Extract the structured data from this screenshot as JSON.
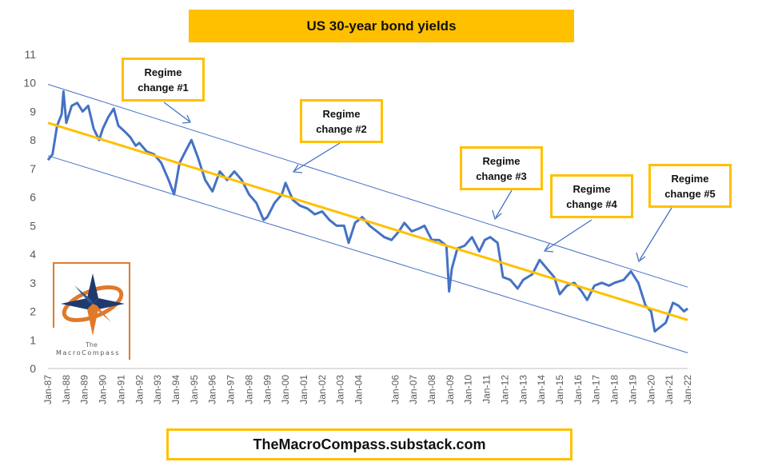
{
  "title": "US 30-year bond yields",
  "footer": "TheMacroCompass.substack.com",
  "logo": {
    "top_text": "The",
    "bottom_text": "MacroCompass"
  },
  "annotations": [
    {
      "line1": "Regime",
      "line2": "change #1"
    },
    {
      "line1": "Regime",
      "line2": "change #2"
    },
    {
      "line1": "Regime",
      "line2": "change #3"
    },
    {
      "line1": "Regime",
      "line2": "change #4"
    },
    {
      "line1": "Regime",
      "line2": "change #5"
    }
  ],
  "colors": {
    "series": "#4472c4",
    "trend": "#ffc000",
    "channel": "#4472c4",
    "accent": "#ffc000",
    "logo_orange": "#e07a2a",
    "logo_navy": "#1f3a6e"
  },
  "chart_data": {
    "type": "line",
    "title": "US 30-year bond yields",
    "xlabel": "",
    "ylabel": "",
    "xlim": [
      1987.0,
      2022.0
    ],
    "ylim": [
      0,
      11
    ],
    "y_ticks": [
      0,
      1,
      2,
      3,
      4,
      5,
      6,
      7,
      8,
      9,
      10,
      11
    ],
    "x_ticks": [
      {
        "label": "Jan-87",
        "x": 1987
      },
      {
        "label": "Jan-88",
        "x": 1988
      },
      {
        "label": "Jan-89",
        "x": 1989
      },
      {
        "label": "Jan-90",
        "x": 1990
      },
      {
        "label": "Jan-91",
        "x": 1991
      },
      {
        "label": "Jan-92",
        "x": 1992
      },
      {
        "label": "Jan-93",
        "x": 1993
      },
      {
        "label": "Jan-94",
        "x": 1994
      },
      {
        "label": "Jan-95",
        "x": 1995
      },
      {
        "label": "Jan-96",
        "x": 1996
      },
      {
        "label": "Jan-97",
        "x": 1997
      },
      {
        "label": "Jan-98",
        "x": 1998
      },
      {
        "label": "Jan-99",
        "x": 1999
      },
      {
        "label": "Jan-00",
        "x": 2000
      },
      {
        "label": "Jan-01",
        "x": 2001
      },
      {
        "label": "Jan-02",
        "x": 2002
      },
      {
        "label": "Jan-03",
        "x": 2003
      },
      {
        "label": "Jan-04",
        "x": 2004
      },
      {
        "label": "Jan-06",
        "x": 2006
      },
      {
        "label": "Jan-07",
        "x": 2007
      },
      {
        "label": "Jan-08",
        "x": 2008
      },
      {
        "label": "Jan-09",
        "x": 2009
      },
      {
        "label": "Jan-10",
        "x": 2010
      },
      {
        "label": "Jan-11",
        "x": 2011
      },
      {
        "label": "Jan-12",
        "x": 2012
      },
      {
        "label": "Jan-13",
        "x": 2013
      },
      {
        "label": "Jan-14",
        "x": 2014
      },
      {
        "label": "Jan-15",
        "x": 2015
      },
      {
        "label": "Jan-16",
        "x": 2016
      },
      {
        "label": "Jan-17",
        "x": 2017
      },
      {
        "label": "Jan-18",
        "x": 2018
      },
      {
        "label": "Jan-19",
        "x": 2019
      },
      {
        "label": "Jan-20",
        "x": 2020
      },
      {
        "label": "Jan-21",
        "x": 2021
      },
      {
        "label": "Jan-22",
        "x": 2022
      }
    ],
    "series": [
      {
        "name": "US 30-year bond yield",
        "x": [
          1987.0,
          1987.25,
          1987.5,
          1987.75,
          1987.85,
          1988.0,
          1988.3,
          1988.6,
          1988.9,
          1989.2,
          1989.5,
          1989.8,
          1990.0,
          1990.3,
          1990.6,
          1990.85,
          1991.2,
          1991.5,
          1991.8,
          1992.0,
          1992.4,
          1992.8,
          1993.2,
          1993.6,
          1993.9,
          1994.2,
          1994.6,
          1994.85,
          1995.2,
          1995.6,
          1996.0,
          1996.4,
          1996.8,
          1997.2,
          1997.6,
          1998.0,
          1998.4,
          1998.8,
          1999.0,
          1999.4,
          1999.8,
          2000.0,
          2000.4,
          2000.8,
          2001.2,
          2001.6,
          2002.0,
          2002.4,
          2002.8,
          2003.2,
          2003.45,
          2003.8,
          2004.2,
          2004.6,
          2005.0,
          2005.4,
          2005.8,
          2006.2,
          2006.5,
          2006.9,
          2007.3,
          2007.6,
          2008.0,
          2008.4,
          2008.8,
          2008.95,
          2009.1,
          2009.4,
          2009.8,
          2010.2,
          2010.6,
          2010.9,
          2011.2,
          2011.6,
          2011.9,
          2012.3,
          2012.7,
          2013.0,
          2013.5,
          2013.9,
          2014.3,
          2014.7,
          2015.0,
          2015.4,
          2015.8,
          2016.2,
          2016.5,
          2016.9,
          2017.3,
          2017.7,
          2018.0,
          2018.5,
          2018.9,
          2019.3,
          2019.7,
          2020.0,
          2020.2,
          2020.4,
          2020.8,
          2021.2,
          2021.5,
          2021.8,
          2022.0
        ],
        "y": [
          7.3,
          7.5,
          8.5,
          8.9,
          9.7,
          8.6,
          9.2,
          9.3,
          9.0,
          9.2,
          8.4,
          8.0,
          8.4,
          8.8,
          9.1,
          8.5,
          8.3,
          8.1,
          7.8,
          7.9,
          7.6,
          7.5,
          7.2,
          6.6,
          6.1,
          7.2,
          7.7,
          8.0,
          7.4,
          6.6,
          6.2,
          6.9,
          6.6,
          6.9,
          6.6,
          6.1,
          5.8,
          5.2,
          5.3,
          5.8,
          6.1,
          6.5,
          5.9,
          5.7,
          5.6,
          5.4,
          5.5,
          5.2,
          5.0,
          5.0,
          4.4,
          5.1,
          5.3,
          5.0,
          4.8,
          4.6,
          4.5,
          4.8,
          5.1,
          4.8,
          4.9,
          5.0,
          4.5,
          4.5,
          4.3,
          2.7,
          3.5,
          4.2,
          4.3,
          4.6,
          4.1,
          4.5,
          4.6,
          4.4,
          3.2,
          3.1,
          2.8,
          3.1,
          3.3,
          3.8,
          3.5,
          3.2,
          2.6,
          2.9,
          3.0,
          2.7,
          2.4,
          2.9,
          3.0,
          2.9,
          3.0,
          3.1,
          3.4,
          3.0,
          2.2,
          2.0,
          1.3,
          1.4,
          1.6,
          2.3,
          2.2,
          2.0,
          2.1
        ]
      }
    ],
    "trendline": {
      "x": [
        1987.0,
        2022.0
      ],
      "y": [
        8.6,
        1.7
      ]
    },
    "channel": {
      "upper": {
        "x": [
          1987.0,
          2022.0
        ],
        "y": [
          9.95,
          2.85
        ]
      },
      "lower": {
        "x": [
          1987.0,
          2022.0
        ],
        "y": [
          7.45,
          0.55
        ]
      }
    }
  }
}
